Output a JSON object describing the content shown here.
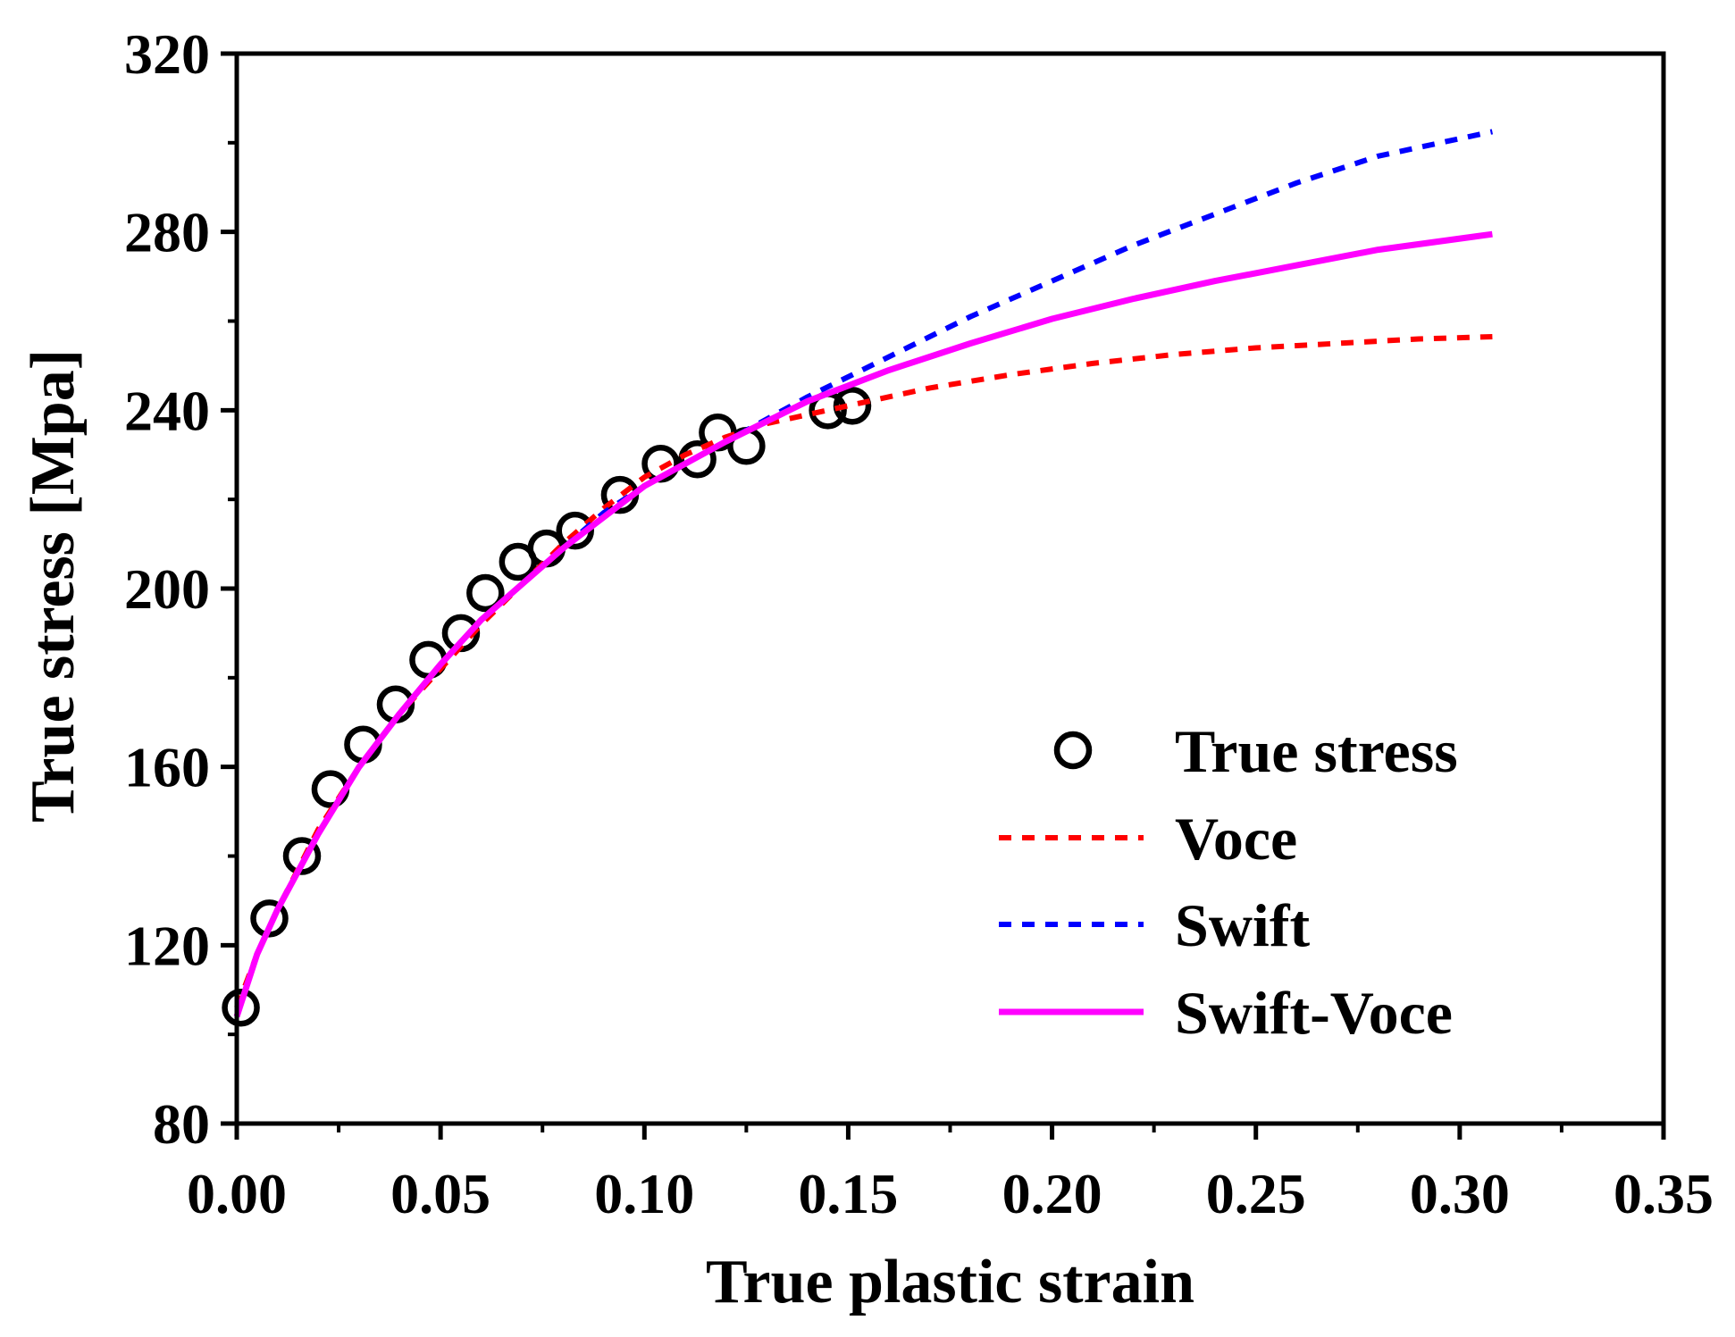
{
  "chart_data": {
    "type": "scatter",
    "xlabel": "True plastic strain",
    "ylabel": "True stress [Mpa]",
    "xlim": [
      0.0,
      0.35
    ],
    "ylim": [
      80,
      320
    ],
    "x_ticks": [
      "0.00",
      "0.05",
      "0.10",
      "0.15",
      "0.20",
      "0.25",
      "0.30",
      "0.35"
    ],
    "y_ticks": [
      "80",
      "120",
      "160",
      "200",
      "240",
      "280",
      "320"
    ],
    "grid": false,
    "legend_position": "bottom-right",
    "series": [
      {
        "name": "True stress",
        "style": "markers",
        "marker": "open-circle",
        "color": "#000000",
        "x": [
          0.001,
          0.008,
          0.016,
          0.023,
          0.031,
          0.039,
          0.047,
          0.055,
          0.061,
          0.069,
          0.076,
          0.083,
          0.094,
          0.104,
          0.113,
          0.118,
          0.125,
          0.145,
          0.151
        ],
        "y": [
          106,
          126,
          140,
          155,
          165,
          174,
          184,
          190,
          199,
          206,
          209,
          213,
          221,
          228,
          229,
          235,
          232,
          240,
          241
        ]
      },
      {
        "name": "Voce",
        "style": "dashed",
        "color": "#ff0000",
        "x": [
          0.0,
          0.005,
          0.01,
          0.02,
          0.03,
          0.04,
          0.05,
          0.06,
          0.07,
          0.08,
          0.09,
          0.1,
          0.11,
          0.12,
          0.13,
          0.14,
          0.15,
          0.17,
          0.19,
          0.21,
          0.23,
          0.25,
          0.27,
          0.29,
          0.308
        ],
        "y": [
          106,
          118,
          128,
          146,
          160,
          172,
          182,
          192,
          201,
          210,
          218,
          225,
          230,
          234,
          237,
          239,
          241,
          245,
          248,
          250.5,
          252.5,
          254,
          255,
          256,
          256.5
        ]
      },
      {
        "name": "Swift",
        "style": "dashed",
        "color": "#0000ff",
        "x": [
          0.0,
          0.005,
          0.01,
          0.02,
          0.03,
          0.04,
          0.05,
          0.06,
          0.07,
          0.08,
          0.09,
          0.1,
          0.12,
          0.14,
          0.16,
          0.18,
          0.2,
          0.22,
          0.24,
          0.26,
          0.28,
          0.308
        ],
        "y": [
          104,
          118,
          128,
          145,
          160,
          172,
          183,
          193,
          201,
          209,
          217,
          223,
          233,
          243,
          252,
          261,
          269,
          277,
          284,
          291,
          297,
          302.5
        ]
      },
      {
        "name": "Swift-Voce",
        "style": "solid",
        "color": "#ff00ff",
        "x": [
          0.0,
          0.005,
          0.01,
          0.02,
          0.03,
          0.04,
          0.05,
          0.06,
          0.07,
          0.08,
          0.09,
          0.1,
          0.12,
          0.14,
          0.16,
          0.18,
          0.2,
          0.22,
          0.24,
          0.26,
          0.28,
          0.308
        ],
        "y": [
          104,
          118,
          128,
          145,
          160,
          172,
          183,
          193,
          201,
          209,
          216,
          223,
          233,
          242,
          249,
          255,
          260.5,
          265,
          269,
          272.5,
          276,
          279.5
        ]
      }
    ]
  }
}
